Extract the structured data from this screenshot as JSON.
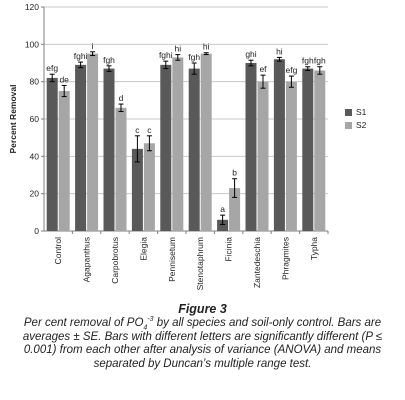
{
  "chart_data": {
    "type": "bar",
    "ylabel": "Percent Removal",
    "xlabel": "",
    "ylim": [
      0,
      120
    ],
    "yticks": [
      0,
      20,
      40,
      60,
      80,
      100,
      120
    ],
    "grid": true,
    "legend_position": "right",
    "categories": [
      "Control",
      "Agapanthus",
      "Carpobrotus",
      "Elegia",
      "Pennisetum",
      "Stenotaphrum",
      "Ficinia",
      "Zantedeschia",
      "Phragmites",
      "Typha"
    ],
    "series": [
      {
        "name": "S1",
        "color": "#595959",
        "values": [
          82,
          89,
          87,
          44,
          89,
          87,
          6,
          90,
          92,
          87
        ],
        "errors": [
          2,
          1.5,
          1.5,
          7,
          2,
          3,
          2.5,
          1.5,
          1,
          1
        ],
        "letters": [
          "efg",
          "fghi",
          "fgh",
          "c",
          "fghi",
          "fgh",
          "a",
          "ghi",
          "hi",
          "fgh"
        ]
      },
      {
        "name": "S2",
        "color": "#a6a6a6",
        "values": [
          75,
          95,
          66,
          47,
          93,
          95,
          23,
          80,
          80,
          86
        ],
        "errors": [
          3,
          1,
          2,
          4,
          1.5,
          0.5,
          5,
          3.5,
          3,
          2
        ],
        "letters": [
          "de",
          "i",
          "d",
          "c",
          "hi",
          "hi",
          "b",
          "ef",
          "efg",
          "fgh"
        ]
      }
    ]
  },
  "caption": {
    "title": "Figure 3",
    "line1_pre": "Per cent removal of PO",
    "line1_sub": "4",
    "line1_sup": "-3",
    "line1_post": " by all species and soil-only control.",
    "line2": "Bars are averages ± SE. Bars with different letters are significantly different (P ≤ 0.001) from each other after analysis of variance (ANOVA) and means separated by Duncan’s multiple range test."
  }
}
